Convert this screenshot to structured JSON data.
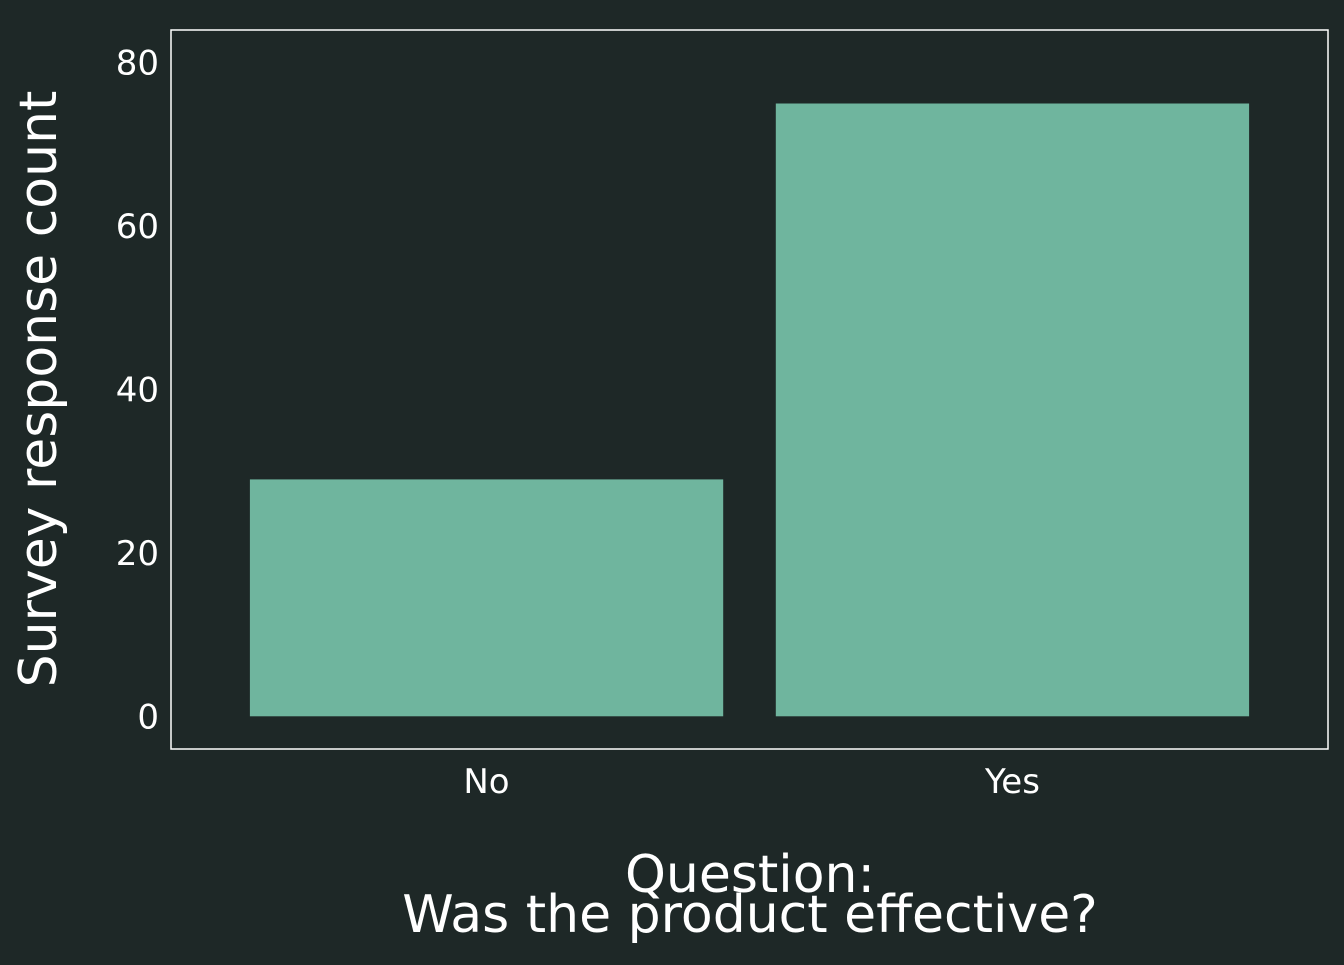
{
  "colors": {
    "background": "#1e2827",
    "bar": "#6fb59e",
    "panel_border": "#ffffff",
    "text": "#ffffff"
  },
  "chart_data": {
    "type": "bar",
    "categories": [
      "No",
      "Yes"
    ],
    "values": [
      29,
      75
    ],
    "xlabel_lines": [
      "Question:",
      "Was the product effective?"
    ],
    "ylabel": "Survey response count",
    "yticks": [
      0,
      20,
      40,
      60,
      80
    ],
    "ylim": [
      -4,
      84
    ],
    "grid": false,
    "legend": "none"
  }
}
